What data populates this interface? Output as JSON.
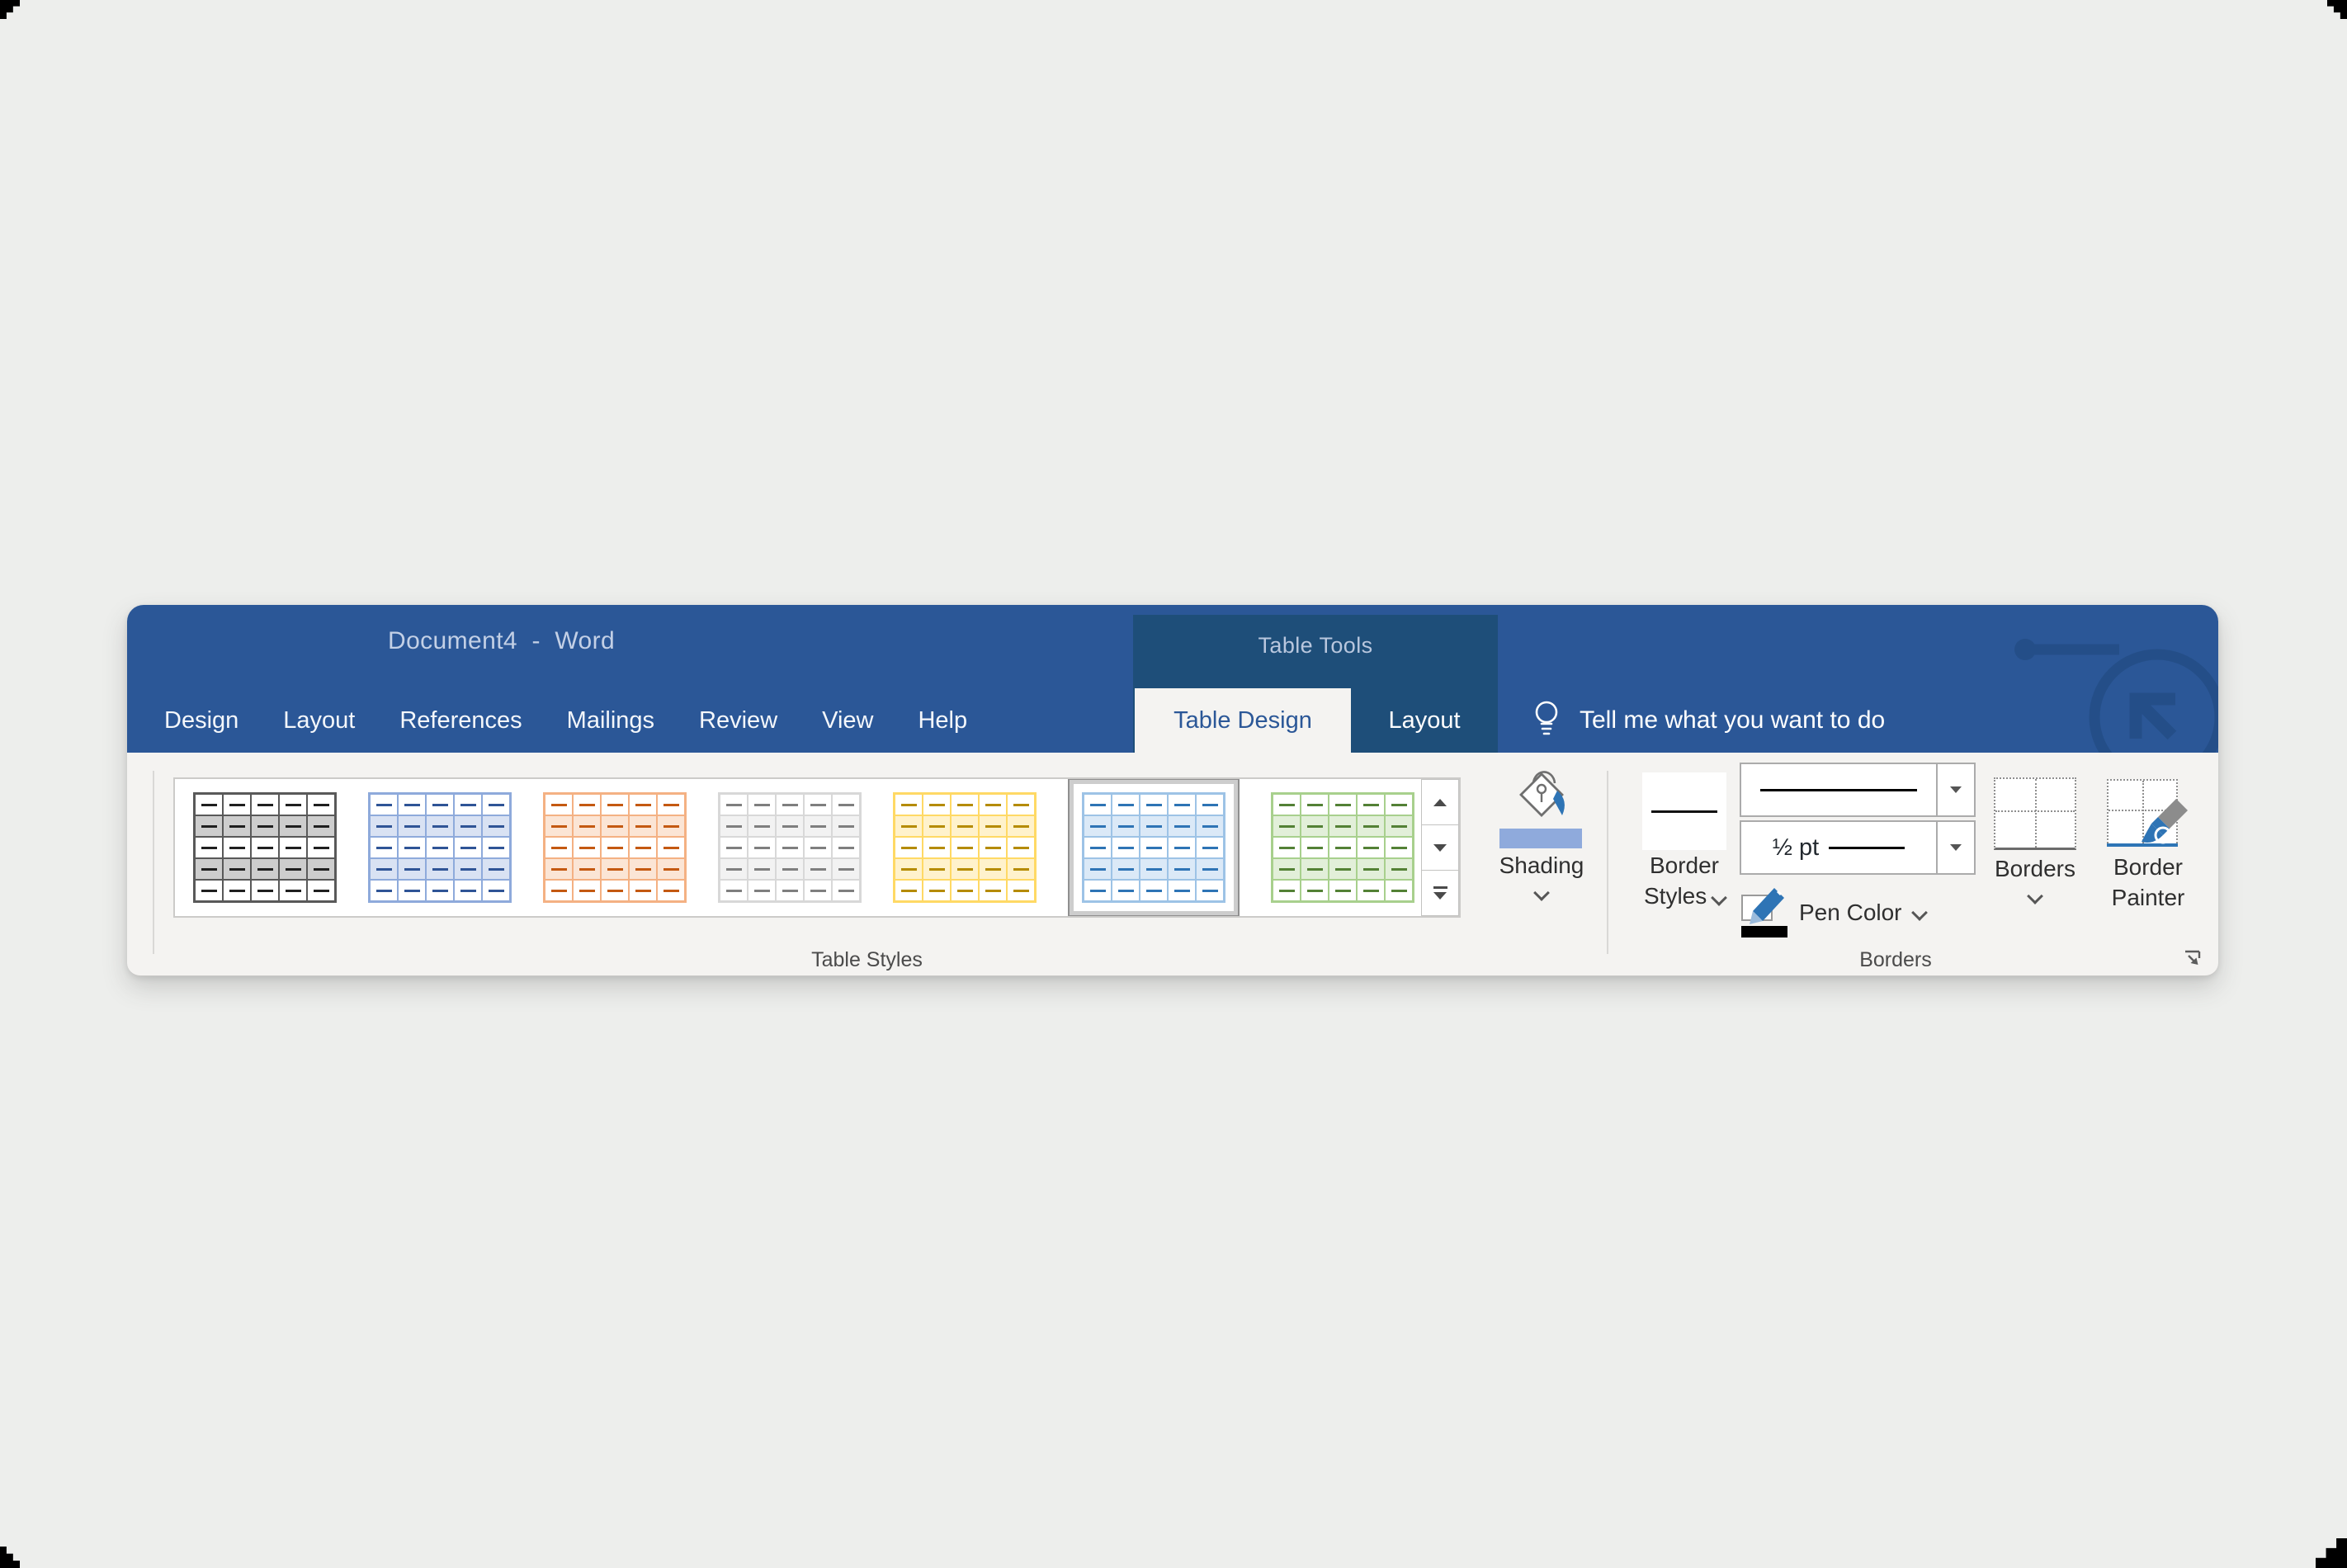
{
  "window": {
    "title": "Document4  -  Word",
    "contextual_title": "Table Tools"
  },
  "ribbon_tabs": [
    {
      "label": "Design"
    },
    {
      "label": "Layout"
    },
    {
      "label": "References"
    },
    {
      "label": "Mailings"
    },
    {
      "label": "Review"
    },
    {
      "label": "View"
    },
    {
      "label": "Help"
    }
  ],
  "contextual_tabs": [
    {
      "label": "Table Design",
      "active": true
    },
    {
      "label": "Layout",
      "active": false
    }
  ],
  "tell_me": {
    "label": "Tell me what you want to do",
    "icon": "lightbulb-icon"
  },
  "table_styles_group": {
    "label": "Table Styles",
    "shading": {
      "label": "Shading"
    },
    "gallery": [
      {
        "name": "dark-gray",
        "border": "#595959",
        "dash": "#1f1f1f",
        "alt": "#cdcdcd",
        "selected": false
      },
      {
        "name": "blue",
        "border": "#8eaadb",
        "dash": "#2f5496",
        "alt": "#d9e2f3",
        "selected": false
      },
      {
        "name": "orange",
        "border": "#f4b183",
        "dash": "#c45911",
        "alt": "#fbe5d5",
        "selected": false
      },
      {
        "name": "light-gray",
        "border": "#d8d8d8",
        "dash": "#7f7f7f",
        "alt": "#f2f2f2",
        "selected": false
      },
      {
        "name": "yellow",
        "border": "#ffd965",
        "dash": "#b58b00",
        "alt": "#fff2cc",
        "selected": false
      },
      {
        "name": "light-blue",
        "border": "#9dc3e6",
        "dash": "#2e74b5",
        "alt": "#dbe9f7",
        "selected": true
      },
      {
        "name": "green",
        "border": "#a8d08d",
        "dash": "#538135",
        "alt": "#e2efd9",
        "selected": false
      }
    ]
  },
  "borders_group": {
    "label": "Borders",
    "border_styles": {
      "line1": "Border",
      "line2": "Styles"
    },
    "line_weight": {
      "value": "½ pt"
    },
    "pen_color": {
      "label": "Pen Color",
      "current_color": "#000000"
    },
    "borders_button": {
      "label": "Borders"
    },
    "border_painter": {
      "line1": "Border",
      "line2": "Painter"
    }
  },
  "colors": {
    "title_bar": "#2b5797",
    "contextual_header": "#1e4e79",
    "active_tab_text": "#2b5797",
    "ribbon_bg": "#f4f3f1",
    "shading_preview": "#8faadc",
    "pen_swatch": "#000000"
  }
}
